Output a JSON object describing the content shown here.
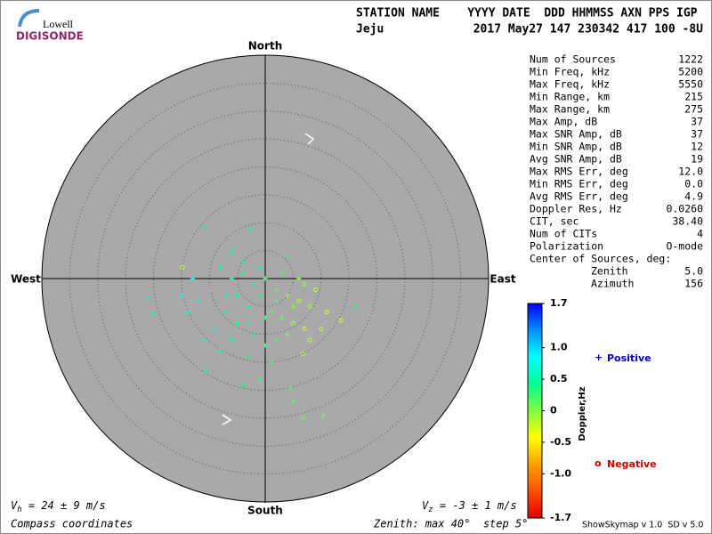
{
  "header": {
    "logo_top": "Lowell",
    "logo_bottom": "DIGISONDE",
    "columns": "STATION NAME    YYYY DATE  DDD HHMMSS AXN PPS IGP",
    "station": "Jeju",
    "values": "2017 May27 147 230342 417 100 -8U"
  },
  "stats": {
    "rows": [
      [
        "Num of Sources",
        "1222"
      ],
      [
        "Min Freq, kHz",
        "5200"
      ],
      [
        "Max Freq, kHz",
        "5550"
      ],
      [
        "Min Range, km",
        "215"
      ],
      [
        "Max Range, km",
        "275"
      ],
      [
        "Max Amp, dB",
        "37"
      ],
      [
        "Max SNR Amp, dB",
        "37"
      ],
      [
        "Min SNR Amp, dB",
        "12"
      ],
      [
        "Avg SNR Amp, dB",
        "19"
      ],
      [
        "Max RMS Err, deg",
        "12.0"
      ],
      [
        "Min RMS Err, deg",
        "0.0"
      ],
      [
        "Avg RMS Err, deg",
        "4.9"
      ],
      [
        "Doppler Res, Hz",
        "0.0260"
      ],
      [
        "CIT, sec",
        "38.40"
      ],
      [
        "Num of CITs",
        "4"
      ],
      [
        "Polarization",
        "O-mode"
      ]
    ],
    "center_title": "Center of Sources, deg:",
    "center_rows": [
      [
        "Zenith",
        "5.0"
      ],
      [
        "Azimuth",
        "156"
      ]
    ]
  },
  "chart_data": {
    "type": "skymap",
    "compass": {
      "north": "North",
      "south": "South",
      "east": "East",
      "west": "West"
    },
    "rlim": [
      0,
      40
    ],
    "rticks": [
      5,
      10,
      15,
      20,
      25,
      30,
      35,
      40
    ],
    "points": {
      "x": [
        -8,
        -6,
        -4,
        -2,
        0,
        2,
        4,
        6,
        8,
        -10,
        -12,
        -7,
        -5,
        -3,
        -1,
        1,
        3,
        5,
        7,
        -9,
        -6,
        -2,
        0,
        2,
        4,
        -14,
        -11,
        -8,
        -3,
        1,
        -4,
        -1,
        3,
        6,
        9,
        11,
        10,
        -13,
        -15,
        -5,
        -7,
        0,
        2,
        -3,
        5,
        7,
        8,
        -1,
        -6,
        4,
        -2.7,
        -4,
        4.5,
        5,
        10.4,
        6.9,
        -21,
        -20,
        -14.8,
        16.2,
        13.5,
        -11,
        6.8,
        -10.8
      ],
      "y": [
        2,
        0,
        1,
        -1,
        0,
        -2,
        -3,
        -4,
        -5,
        -2,
        -4,
        -6,
        -8,
        -5,
        -3,
        -6,
        -7,
        -8,
        -9,
        -9,
        -11,
        -10,
        -12,
        -11,
        -10,
        -6,
        -11,
        -13,
        -14,
        -15,
        3,
        2,
        1,
        0,
        -2,
        -6,
        -9,
        0,
        -3,
        -3,
        -3,
        -7,
        -4,
        -8,
        -5,
        -1,
        -11,
        -18,
        5,
        4,
        8.8,
        -19,
        -19.7,
        -22,
        -24.5,
        -25,
        -3.5,
        -6.2,
        2,
        -5,
        -7.5,
        9.2,
        -13.5,
        -16.5
      ],
      "doppler": [
        0.6,
        0.5,
        0.4,
        0.5,
        0.3,
        0.1,
        0,
        -0.2,
        -0.1,
        0.7,
        0.6,
        0.5,
        0.4,
        0.5,
        0.4,
        0.2,
        0.1,
        -0.1,
        -0.3,
        0.6,
        0.5,
        0.4,
        0.3,
        0.2,
        0,
        0.7,
        0.6,
        0.5,
        0.4,
        0.3,
        0.6,
        0.5,
        0.2,
        0,
        -0.2,
        -0.3,
        -0.2,
        0.8,
        0.7,
        0.5,
        0.6,
        0.3,
        0.2,
        0.4,
        0,
        -0.1,
        -0.2,
        0.3,
        0.5,
        0.3,
        0.5,
        0.4,
        0.2,
        0.1,
        0.1,
        0.2,
        0.6,
        0.5,
        -0.2,
        0.3,
        -0.3,
        0.5,
        -0.1,
        0.5
      ]
    },
    "colorbar": {
      "label": "Doppler,Hz",
      "lim": [
        -1.7,
        1.7
      ],
      "ticks": [
        1.7,
        {
          "value": 1.0,
          "label": "1.0"
        },
        0.5,
        0,
        -0.5,
        {
          "value": -1.0,
          "label": "-1.0"
        },
        -1.7
      ],
      "colors": [
        "#e00000",
        "#ff5000",
        "#ffa000",
        "#ffff00",
        "#80ff40",
        "#00ff90",
        "#00ffff",
        "#0090ff",
        "#0000ff"
      ]
    },
    "legend": {
      "positive_marker": "+",
      "positive": "Positive",
      "positive_color": "#0000cc",
      "negative_marker": "o",
      "negative": "Negative",
      "negative_color": "#cc0000"
    },
    "vh": [
      "V",
      "h",
      " = 24 ± 9 m/s"
    ],
    "vz": [
      "V",
      "z",
      " = -3 ± 1 m/s"
    ]
  },
  "footer": {
    "left": "Compass coordinates",
    "middle": "Zenith: max 40°  step 5°",
    "right": "ShowSkymap v 1.0  SD v 5.0"
  }
}
